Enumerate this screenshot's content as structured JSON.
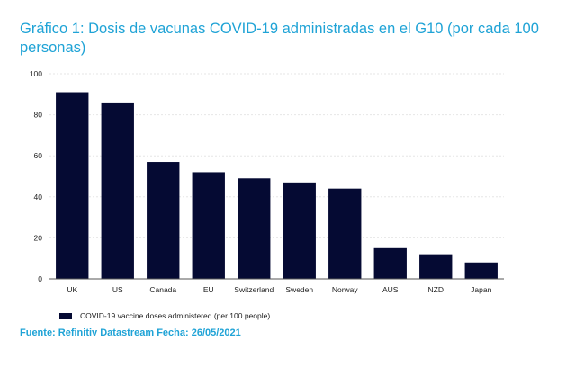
{
  "title": "Gráfico 1: Dosis de vacunas COVID-19 administradas en el G10 (por cada 100 personas)",
  "source": "Fuente: Refinitiv Datastream Fecha: 26/05/2021",
  "colors": {
    "bar": "#050a33",
    "title": "#1fa3d6",
    "grid": "#e6e6e6"
  },
  "chart_data": {
    "type": "bar",
    "categories": [
      "UK",
      "US",
      "Canada",
      "EU",
      "Switzerland",
      "Sweden",
      "Norway",
      "AUS",
      "NZD",
      "Japan"
    ],
    "series": [
      {
        "name": "COVID-19 vaccine doses administered (per 100 people)",
        "values": [
          91,
          86,
          57,
          52,
          49,
          47,
          44,
          15,
          12,
          8
        ]
      }
    ],
    "ylim": [
      0,
      100
    ],
    "yticks": [
      0,
      20,
      40,
      60,
      80,
      100
    ],
    "grid": true,
    "legend": "bottom-left"
  }
}
